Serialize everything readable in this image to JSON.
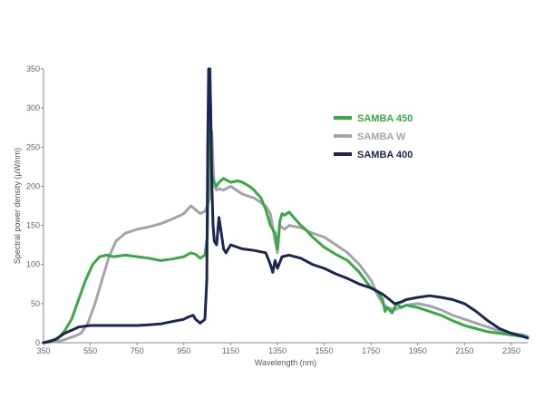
{
  "chart_data": {
    "type": "line",
    "xlabel": "Wavelength (nm)",
    "ylabel": "Spectral power density (µW/nm)",
    "xlim": [
      350,
      2420
    ],
    "ylim": [
      0,
      350
    ],
    "xticks": [
      350,
      550,
      750,
      950,
      1150,
      1350,
      1550,
      1750,
      1950,
      2150,
      2350
    ],
    "yticks": [
      0,
      50,
      100,
      150,
      200,
      250,
      300,
      350
    ],
    "grid": false,
    "legend_position": "top-right",
    "series": [
      {
        "name": "SAMBA 450",
        "color": "#3aa845",
        "x": [
          350,
          410,
          440,
          470,
          500,
          530,
          560,
          590,
          620,
          650,
          700,
          750,
          800,
          850,
          900,
          950,
          980,
          1000,
          1020,
          1040,
          1050,
          1055,
          1058,
          1062,
          1066,
          1070,
          1080,
          1090,
          1100,
          1120,
          1150,
          1180,
          1200,
          1230,
          1250,
          1280,
          1300,
          1320,
          1340,
          1350,
          1360,
          1370,
          1380,
          1400,
          1420,
          1450,
          1470,
          1500,
          1550,
          1600,
          1650,
          1700,
          1750,
          1780,
          1800,
          1810,
          1820,
          1840,
          1860,
          1880,
          1900,
          1950,
          2000,
          2050,
          2100,
          2150,
          2200,
          2250,
          2300,
          2350,
          2400,
          2420
        ],
        "y": [
          0,
          5,
          15,
          30,
          55,
          80,
          100,
          110,
          112,
          110,
          112,
          110,
          108,
          105,
          107,
          110,
          115,
          113,
          108,
          112,
          135,
          230,
          350,
          350,
          250,
          215,
          205,
          200,
          205,
          210,
          205,
          207,
          205,
          200,
          195,
          185,
          170,
          150,
          140,
          120,
          155,
          165,
          163,
          167,
          160,
          150,
          145,
          135,
          122,
          113,
          105,
          90,
          70,
          65,
          55,
          40,
          45,
          38,
          50,
          45,
          48,
          45,
          40,
          35,
          28,
          22,
          18,
          14,
          12,
          10,
          8,
          6
        ]
      },
      {
        "name": "SAMBA W",
        "color": "#a3a5a8",
        "x": [
          350,
          420,
          450,
          480,
          510,
          540,
          570,
          600,
          630,
          660,
          700,
          750,
          800,
          850,
          900,
          950,
          980,
          1000,
          1020,
          1040,
          1050,
          1060,
          1065,
          1070,
          1075,
          1080,
          1090,
          1100,
          1120,
          1150,
          1200,
          1250,
          1300,
          1320,
          1340,
          1350,
          1360,
          1380,
          1400,
          1450,
          1500,
          1550,
          1600,
          1650,
          1700,
          1750,
          1780,
          1800,
          1820,
          1850,
          1900,
          1950,
          2000,
          2050,
          2100,
          2150,
          2200,
          2250,
          2300,
          2350,
          2400,
          2420
        ],
        "y": [
          0,
          2,
          5,
          8,
          12,
          25,
          50,
          80,
          110,
          130,
          140,
          145,
          148,
          152,
          158,
          165,
          175,
          170,
          165,
          168,
          175,
          185,
          250,
          270,
          230,
          200,
          195,
          197,
          195,
          200,
          190,
          185,
          175,
          165,
          130,
          115,
          150,
          145,
          150,
          147,
          140,
          135,
          125,
          115,
          100,
          80,
          60,
          50,
          45,
          42,
          48,
          50,
          47,
          42,
          35,
          30,
          25,
          20,
          15,
          12,
          10,
          8
        ]
      },
      {
        "name": "SAMBA 400",
        "color": "#1b2654",
        "x": [
          350,
          380,
          400,
          420,
          440,
          470,
          500,
          550,
          600,
          650,
          700,
          750,
          800,
          850,
          900,
          950,
          970,
          990,
          1000,
          1020,
          1040,
          1048,
          1052,
          1056,
          1060,
          1065,
          1070,
          1075,
          1080,
          1090,
          1100,
          1110,
          1120,
          1130,
          1150,
          1200,
          1250,
          1300,
          1320,
          1330,
          1340,
          1350,
          1370,
          1400,
          1450,
          1500,
          1550,
          1600,
          1650,
          1700,
          1750,
          1800,
          1830,
          1850,
          1880,
          1900,
          1950,
          2000,
          2050,
          2100,
          2150,
          2200,
          2250,
          2300,
          2350,
          2400,
          2420
        ],
        "y": [
          0,
          2,
          4,
          8,
          12,
          16,
          20,
          22,
          22,
          22,
          22,
          22,
          23,
          24,
          27,
          30,
          33,
          35,
          30,
          25,
          30,
          80,
          250,
          350,
          350,
          300,
          200,
          150,
          130,
          125,
          160,
          140,
          120,
          115,
          125,
          120,
          118,
          115,
          100,
          90,
          105,
          95,
          110,
          112,
          108,
          100,
          95,
          88,
          82,
          75,
          70,
          62,
          55,
          50,
          52,
          55,
          58,
          60,
          58,
          55,
          50,
          40,
          28,
          18,
          12,
          8,
          6
        ]
      }
    ]
  }
}
